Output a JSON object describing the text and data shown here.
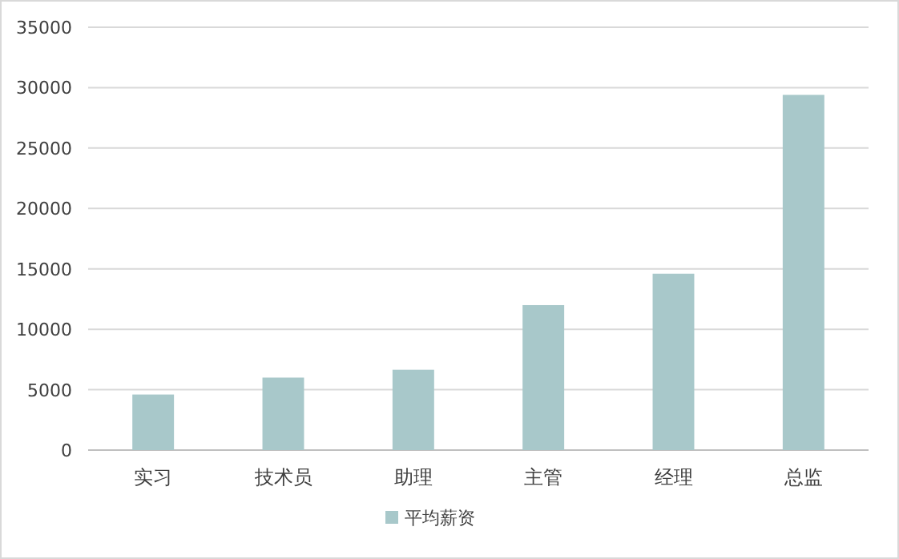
{
  "chart_data": {
    "type": "bar",
    "categories": [
      "实习",
      "技术员",
      "助理",
      "主管",
      "经理",
      "总监"
    ],
    "series": [
      {
        "name": "平均薪资",
        "color": "#a8c8ca",
        "values": [
          4600,
          6000,
          6650,
          12000,
          14600,
          29400
        ]
      }
    ],
    "ylim": [
      0,
      35000
    ],
    "yticks": [
      0,
      5000,
      10000,
      15000,
      20000,
      25000,
      30000,
      35000
    ],
    "grid": "y",
    "legend": "bottom"
  }
}
